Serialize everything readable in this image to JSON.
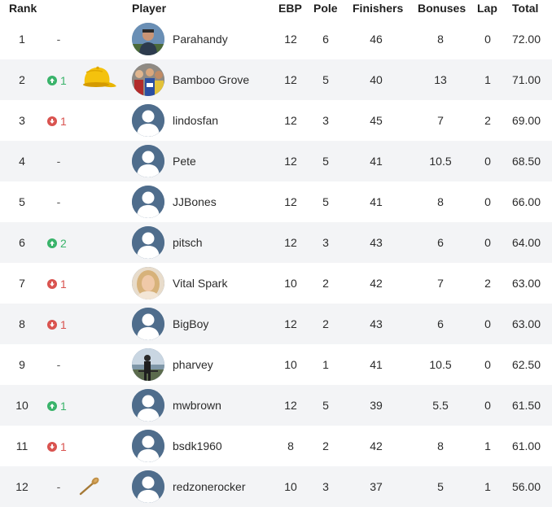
{
  "headers": {
    "rank": "Rank",
    "player": "Player",
    "ebp": "EBP",
    "pole": "Pole",
    "finishers": "Finishers",
    "bonuses": "Bonuses",
    "lap": "Lap",
    "total": "Total"
  },
  "colors": {
    "up": "#39b36a",
    "down": "#d9534f",
    "avatar_default": "#4f6d8c",
    "row_alt": "#f3f4f6"
  },
  "rows": [
    {
      "rank": "1",
      "move": "-",
      "dir": "none",
      "name": "Parahandy",
      "ebp": "12",
      "pole": "6",
      "finishers": "46",
      "bonuses": "8",
      "lap": "0",
      "total": "72.00",
      "avatar": "photo-man-outdoors",
      "badge": ""
    },
    {
      "rank": "2",
      "move": "1",
      "dir": "up",
      "name": "Bamboo Grove",
      "ebp": "12",
      "pole": "5",
      "finishers": "40",
      "bonuses": "13",
      "lap": "1",
      "total": "71.00",
      "avatar": "photo-crowd",
      "badge": "yellow-cap-icon"
    },
    {
      "rank": "3",
      "move": "1",
      "dir": "down",
      "name": "lindosfan",
      "ebp": "12",
      "pole": "3",
      "finishers": "45",
      "bonuses": "7",
      "lap": "2",
      "total": "69.00",
      "avatar": "default-user",
      "badge": ""
    },
    {
      "rank": "4",
      "move": "-",
      "dir": "none",
      "name": "Pete",
      "ebp": "12",
      "pole": "5",
      "finishers": "41",
      "bonuses": "10.5",
      "lap": "0",
      "total": "68.50",
      "avatar": "default-user",
      "badge": ""
    },
    {
      "rank": "5",
      "move": "-",
      "dir": "none",
      "name": "JJBones",
      "ebp": "12",
      "pole": "5",
      "finishers": "41",
      "bonuses": "8",
      "lap": "0",
      "total": "66.00",
      "avatar": "default-user",
      "badge": ""
    },
    {
      "rank": "6",
      "move": "2",
      "dir": "up",
      "name": "pitsch",
      "ebp": "12",
      "pole": "3",
      "finishers": "43",
      "bonuses": "6",
      "lap": "0",
      "total": "64.00",
      "avatar": "default-user",
      "badge": ""
    },
    {
      "rank": "7",
      "move": "1",
      "dir": "down",
      "name": "Vital Spark",
      "ebp": "10",
      "pole": "2",
      "finishers": "42",
      "bonuses": "7",
      "lap": "2",
      "total": "63.00",
      "avatar": "photo-woman-blonde",
      "badge": ""
    },
    {
      "rank": "8",
      "move": "1",
      "dir": "down",
      "name": "BigBoy",
      "ebp": "12",
      "pole": "2",
      "finishers": "43",
      "bonuses": "6",
      "lap": "0",
      "total": "63.00",
      "avatar": "default-user",
      "badge": ""
    },
    {
      "rank": "9",
      "move": "-",
      "dir": "none",
      "name": "pharvey",
      "ebp": "10",
      "pole": "1",
      "finishers": "41",
      "bonuses": "10.5",
      "lap": "0",
      "total": "62.50",
      "avatar": "photo-man-silhouette",
      "badge": ""
    },
    {
      "rank": "10",
      "move": "1",
      "dir": "up",
      "name": "mwbrown",
      "ebp": "12",
      "pole": "5",
      "finishers": "39",
      "bonuses": "5.5",
      "lap": "0",
      "total": "61.50",
      "avatar": "default-user",
      "badge": ""
    },
    {
      "rank": "11",
      "move": "1",
      "dir": "down",
      "name": "bsdk1960",
      "ebp": "8",
      "pole": "2",
      "finishers": "42",
      "bonuses": "8",
      "lap": "1",
      "total": "61.00",
      "avatar": "default-user",
      "badge": ""
    },
    {
      "rank": "12",
      "move": "-",
      "dir": "none",
      "name": "redzonerocker",
      "ebp": "10",
      "pole": "3",
      "finishers": "37",
      "bonuses": "5",
      "lap": "1",
      "total": "56.00",
      "avatar": "default-user",
      "badge": "wooden-spoon-icon"
    }
  ]
}
